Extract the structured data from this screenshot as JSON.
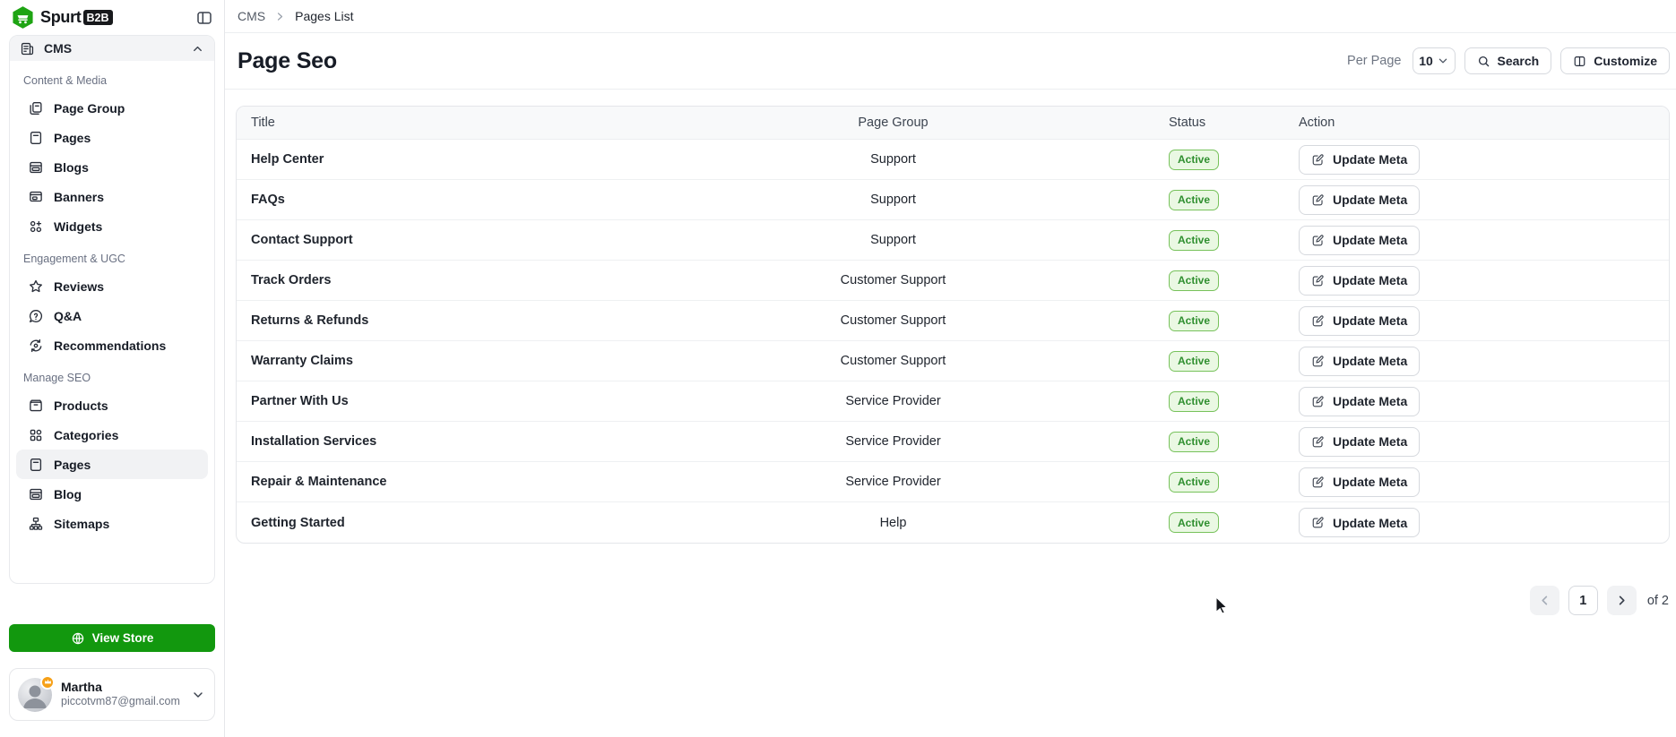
{
  "brand": {
    "name": "Spurt",
    "badge": "B2B",
    "logo_icon": "spurt-logo"
  },
  "sidebar": {
    "cms": {
      "label": "CMS",
      "icon": "cms-icon"
    },
    "sections": [
      {
        "label": "Content & Media",
        "items": [
          {
            "label": "Page Group",
            "icon": "page-group-icon"
          },
          {
            "label": "Pages",
            "icon": "pages-icon"
          },
          {
            "label": "Blogs",
            "icon": "blogs-icon"
          },
          {
            "label": "Banners",
            "icon": "banners-icon"
          },
          {
            "label": "Widgets",
            "icon": "widgets-icon"
          }
        ]
      },
      {
        "label": "Engagement & UGC",
        "items": [
          {
            "label": "Reviews",
            "icon": "reviews-icon"
          },
          {
            "label": "Q&A",
            "icon": "qa-icon"
          },
          {
            "label": "Recommendations",
            "icon": "recommendations-icon"
          }
        ]
      },
      {
        "label": "Manage SEO",
        "items": [
          {
            "label": "Products",
            "icon": "products-icon"
          },
          {
            "label": "Categories",
            "icon": "categories-icon"
          },
          {
            "label": "Pages",
            "icon": "pages-icon",
            "active": true
          },
          {
            "label": "Blog",
            "icon": "blogs-icon"
          },
          {
            "label": "Sitemaps",
            "icon": "sitemaps-icon"
          }
        ]
      }
    ],
    "view_store_label": "View Store",
    "profile": {
      "name": "Martha",
      "email": "piccotvm87@gmail.com"
    }
  },
  "breadcrumb": {
    "parent": "CMS",
    "current": "Pages List"
  },
  "page_header": {
    "title": "Page Seo",
    "per_page_label": "Per Page",
    "per_page_value": "10",
    "search_label": "Search",
    "customize_label": "Customize"
  },
  "table": {
    "columns": [
      "Title",
      "Page Group",
      "Status",
      "Action"
    ],
    "action_label": "Update Meta",
    "rows": [
      {
        "title": "Help Center",
        "page_group": "Support",
        "status": "Active"
      },
      {
        "title": "FAQs",
        "page_group": "Support",
        "status": "Active"
      },
      {
        "title": "Contact Support",
        "page_group": "Support",
        "status": "Active"
      },
      {
        "title": "Track Orders",
        "page_group": "Customer Support",
        "status": "Active"
      },
      {
        "title": "Returns & Refunds",
        "page_group": "Customer Support",
        "status": "Active"
      },
      {
        "title": "Warranty Claims",
        "page_group": "Customer Support",
        "status": "Active"
      },
      {
        "title": "Partner With Us",
        "page_group": "Service Provider",
        "status": "Active"
      },
      {
        "title": "Installation Services",
        "page_group": "Service Provider",
        "status": "Active"
      },
      {
        "title": "Repair & Maintenance",
        "page_group": "Service Provider",
        "status": "Active"
      },
      {
        "title": "Getting Started",
        "page_group": "Help",
        "status": "Active"
      }
    ]
  },
  "pagination": {
    "current_page": "1",
    "total_label": "of 2"
  },
  "colors": {
    "brand_green": "#12980e",
    "active_badge_bg": "#eaf8e3",
    "active_badge_border": "#77c25b",
    "active_badge_text": "#2f8f2f",
    "profile_badge_orange": "#f6a017"
  }
}
